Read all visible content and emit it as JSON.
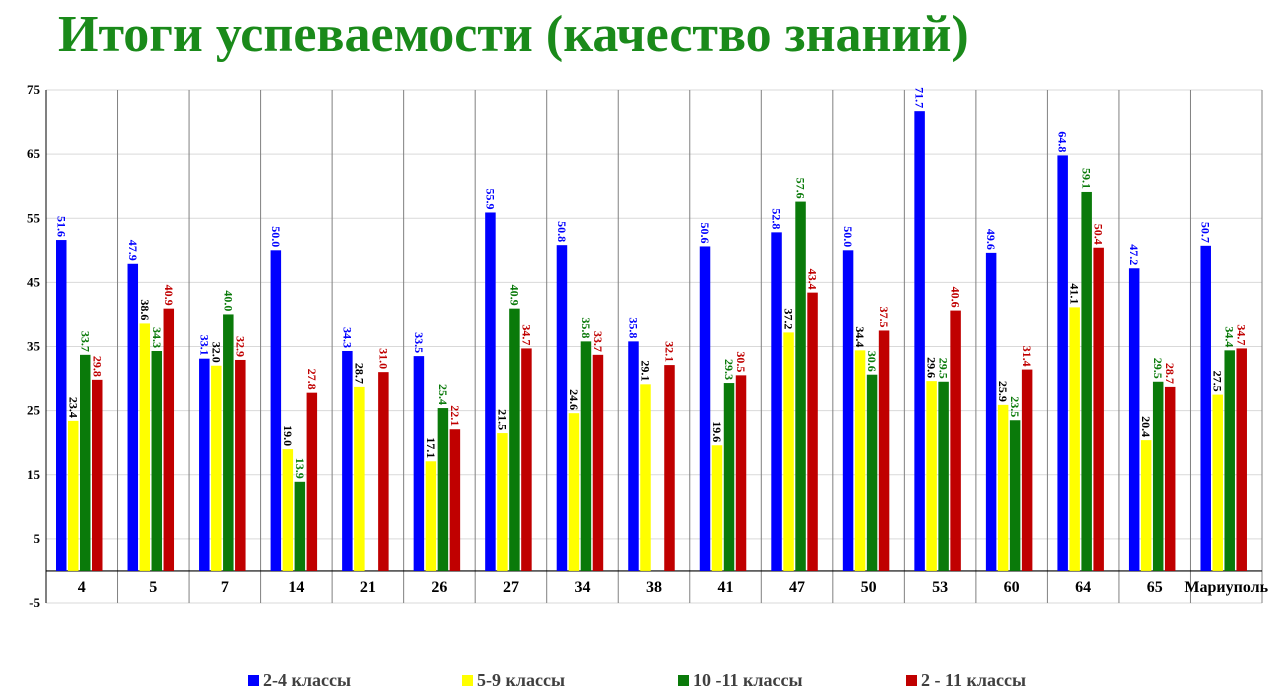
{
  "title": "Итоги успеваемости (качество знаний)",
  "chart_data": {
    "type": "bar",
    "title": "Итоги успеваемости (качество знаний)",
    "xlabel": "",
    "ylabel": "",
    "ylim": [
      -5,
      75
    ],
    "yticks": [
      75,
      65,
      55,
      45,
      35,
      25,
      15,
      5,
      -5
    ],
    "grid": true,
    "legend_position": "bottom",
    "categories": [
      "4",
      "5",
      "7",
      "14",
      "21",
      "26",
      "27",
      "34",
      "38",
      "41",
      "47",
      "50",
      "53",
      "60",
      "64",
      "65",
      "Мариуполь"
    ],
    "series": [
      {
        "name": "2-4 классы",
        "color": "#0000ff",
        "label_color": "#0000ff",
        "values": [
          51.6,
          47.9,
          33.1,
          50.0,
          34.3,
          33.5,
          55.9,
          50.8,
          35.8,
          50.6,
          52.8,
          50.0,
          71.7,
          49.6,
          64.8,
          47.2,
          50.7
        ]
      },
      {
        "name": "5-9 классы",
        "color": "#ffff00",
        "label_color": "#000000",
        "values": [
          23.4,
          38.6,
          32.0,
          19.0,
          28.7,
          17.1,
          21.5,
          24.6,
          29.1,
          19.6,
          37.2,
          34.4,
          29.6,
          25.9,
          41.1,
          20.4,
          27.5
        ]
      },
      {
        "name": "10 -11 классы",
        "color": "#0a7a0a",
        "label_color": "#0a7a0a",
        "values": [
          33.7,
          34.3,
          40.0,
          13.9,
          null,
          25.4,
          40.9,
          35.8,
          null,
          29.3,
          57.6,
          30.6,
          29.5,
          23.5,
          59.1,
          29.5,
          34.4
        ]
      },
      {
        "name": "2 - 11 классы",
        "color": "#c00000",
        "label_color": "#c00000",
        "values": [
          29.8,
          40.9,
          32.9,
          27.8,
          31.0,
          22.1,
          34.7,
          33.7,
          32.1,
          30.5,
          43.4,
          37.5,
          40.6,
          31.4,
          50.4,
          28.7,
          34.7
        ]
      }
    ]
  }
}
